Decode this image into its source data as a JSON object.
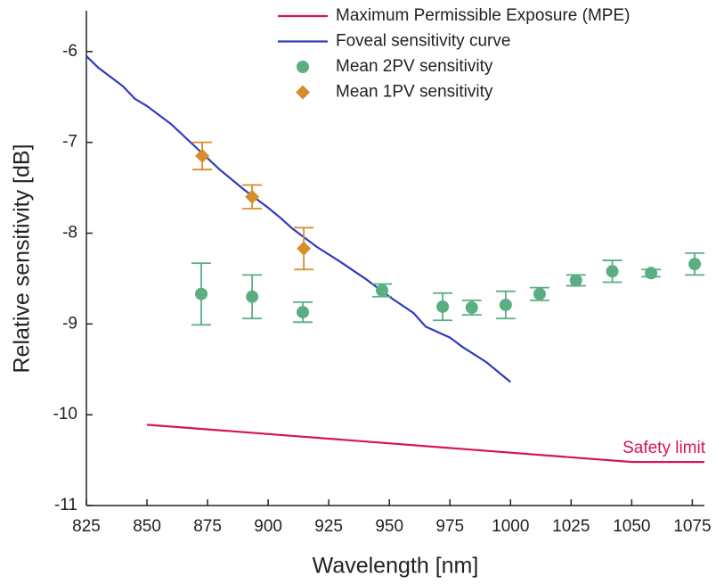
{
  "chart_data": {
    "type": "line",
    "x_label": "Wavelength [nm]",
    "y_label": "Relative sensitivity [dB]",
    "xlim": [
      825,
      1080
    ],
    "ylim": [
      -11,
      -5.55
    ],
    "xticks": [
      825,
      850,
      875,
      900,
      925,
      950,
      975,
      1000,
      1025,
      1050,
      1075
    ],
    "yticks": [
      -11,
      -10,
      -9,
      -8,
      -7,
      -6
    ],
    "legend": "upper right",
    "annotation": "Safety limit",
    "annotation_color": "#d6135a",
    "series": [
      {
        "name": "Maximum Permissible Exposure (MPE)",
        "type": "line",
        "color": "#d6135a",
        "x": [
          850,
          1050,
          1080
        ],
        "values": [
          -10.11,
          -10.52,
          -10.52
        ]
      },
      {
        "name": "Foveal sensitivity curve",
        "type": "line",
        "color": "#2e3bbf",
        "x": [
          825,
          830,
          840,
          845,
          850,
          860,
          870,
          880,
          890,
          900,
          905,
          910,
          920,
          930,
          940,
          950,
          960,
          965,
          975,
          980,
          990,
          1000
        ],
        "values": [
          -6.05,
          -6.18,
          -6.38,
          -6.52,
          -6.6,
          -6.8,
          -7.05,
          -7.3,
          -7.52,
          -7.72,
          -7.83,
          -7.95,
          -8.15,
          -8.32,
          -8.5,
          -8.7,
          -8.88,
          -9.03,
          -9.15,
          -9.25,
          -9.42,
          -9.64
        ]
      },
      {
        "name": "Mean 2PV sensitivity",
        "type": "scatter",
        "marker": "circle",
        "color": "#5aae82",
        "x": [
          872.4,
          893.4,
          914.3,
          947,
          972,
          984,
          998,
          1012,
          1027,
          1042,
          1058,
          1076
        ],
        "values": [
          -8.67,
          -8.7,
          -8.87,
          -8.63,
          -8.81,
          -8.82,
          -8.79,
          -8.67,
          -8.52,
          -8.42,
          -8.44,
          -8.34
        ],
        "errors": [
          0.34,
          0.24,
          0.11,
          0.07,
          0.15,
          0.08,
          0.15,
          0.07,
          0.06,
          0.12,
          0.04,
          0.12
        ]
      },
      {
        "name": "Mean 1PV sensitivity",
        "type": "scatter",
        "marker": "diamond",
        "color": "#d98d2a",
        "x": [
          872.8,
          893.4,
          914.7
        ],
        "values": [
          -7.15,
          -7.6,
          -8.17
        ],
        "errors": [
          0.15,
          0.13,
          0.23
        ]
      }
    ]
  }
}
